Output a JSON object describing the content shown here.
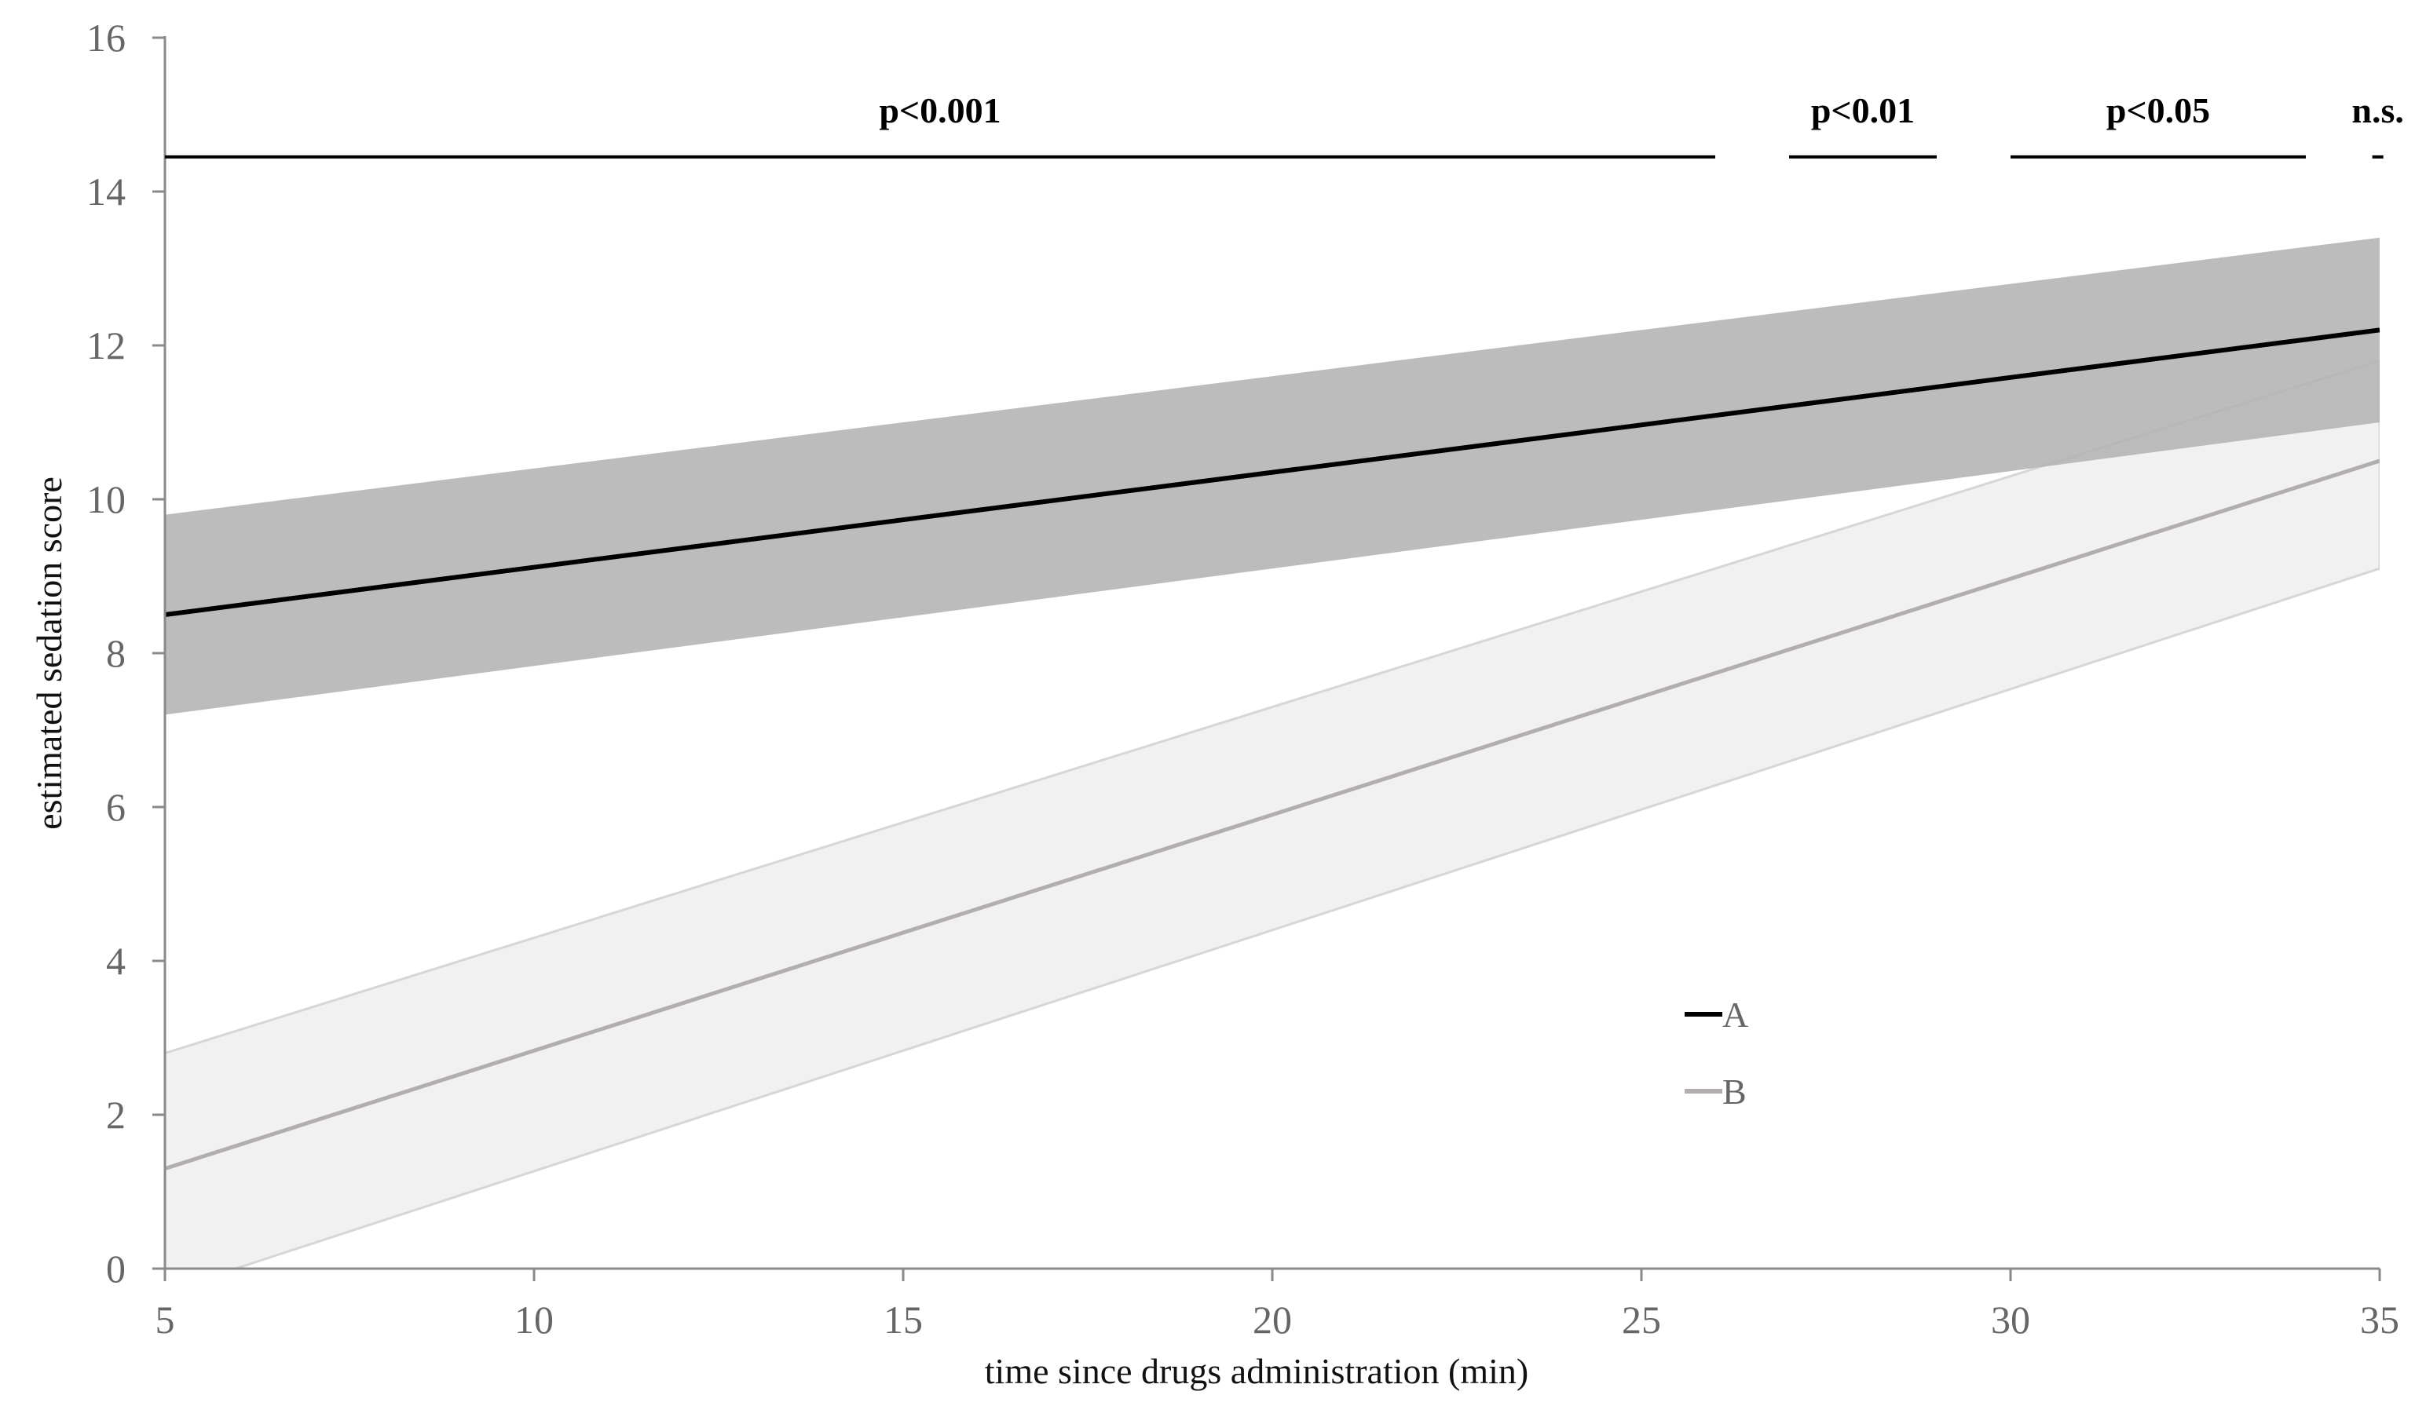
{
  "chart_data": {
    "type": "line",
    "title": "",
    "xlabel": "time since drugs administration (min)",
    "ylabel": "estimated sedation score",
    "xlim": [
      5,
      35
    ],
    "ylim": [
      0,
      16
    ],
    "xticks": [
      5,
      10,
      15,
      20,
      25,
      30,
      35
    ],
    "yticks": [
      0,
      2,
      4,
      6,
      8,
      10,
      12,
      14,
      16
    ],
    "grid": false,
    "legend_position": "center-right",
    "series": [
      {
        "name": "A",
        "color": "#000000",
        "band_color": "#b3b3b3",
        "x": [
          5,
          35
        ],
        "y": [
          8.5,
          12.2
        ],
        "lower": [
          7.2,
          11.0
        ],
        "upper": [
          9.8,
          13.4
        ]
      },
      {
        "name": "B",
        "color": "#b3aeae",
        "band_color": "#f1f1f1",
        "x": [
          5,
          35
        ],
        "y": [
          1.3,
          10.5
        ],
        "lower": [
          -0.3,
          9.1
        ],
        "upper": [
          2.8,
          11.8
        ]
      }
    ],
    "significance": [
      {
        "label": "p<0.001",
        "x_start": 5,
        "x_end": 26,
        "y": 14.45
      },
      {
        "label": "p<0.01",
        "x_start": 27,
        "x_end": 29,
        "y": 14.45
      },
      {
        "label": "p<0.05",
        "x_start": 30,
        "x_end": 34,
        "y": 14.45
      },
      {
        "label": "n.s.",
        "x_start": 34.9,
        "x_end": 35.05,
        "y": 14.45
      }
    ]
  }
}
